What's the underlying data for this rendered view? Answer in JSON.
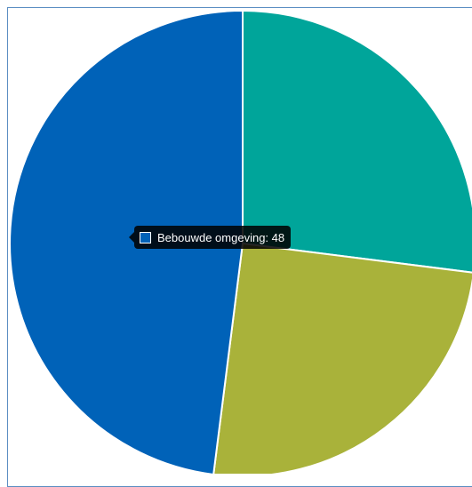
{
  "chart_data": {
    "type": "pie",
    "slices": [
      {
        "label": "",
        "value": 27,
        "color": "#00a59a"
      },
      {
        "label": "",
        "value": 25,
        "color": "#a9b23a"
      },
      {
        "label": "Bebouwde omgeving",
        "value": 48,
        "color": "#0062b8"
      }
    ],
    "legend": "none"
  },
  "tooltip": {
    "text": "Bebouwde omgeving: 48",
    "color": "#0062b8"
  }
}
